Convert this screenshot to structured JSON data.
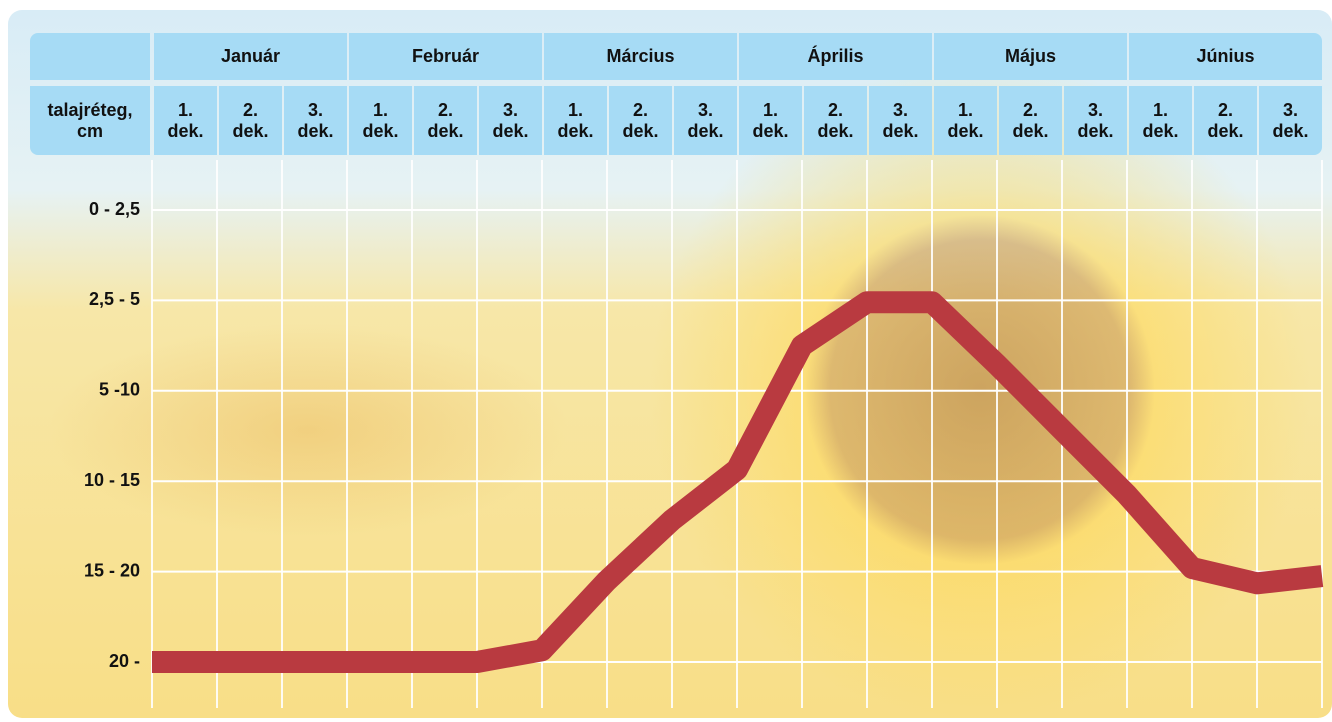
{
  "chart_data": {
    "type": "line",
    "y_axis_title": "talajréteg, cm",
    "months": [
      {
        "name": "Január",
        "dekads": [
          "1. dek.",
          "2. dek.",
          "3. dek."
        ]
      },
      {
        "name": "Február",
        "dekads": [
          "1. dek.",
          "2. dek.",
          "3. dek."
        ]
      },
      {
        "name": "Március",
        "dekads": [
          "1. dek.",
          "2. dek.",
          "3. dek."
        ]
      },
      {
        "name": "Április",
        "dekads": [
          "1. dek.",
          "2. dek.",
          "3. dek."
        ]
      },
      {
        "name": "Május",
        "dekads": [
          "1. dek.",
          "2. dek.",
          "3. dek."
        ]
      },
      {
        "name": "Június",
        "dekads": [
          "1. dek.",
          "2. dek.",
          "3. dek."
        ]
      }
    ],
    "x": [
      0,
      1,
      2,
      3,
      4,
      5,
      6,
      7,
      8,
      9,
      10,
      11,
      12,
      13,
      14,
      15,
      16,
      17,
      18
    ],
    "xlim": [
      0,
      18
    ],
    "ylim": [
      -0.3,
      5.5
    ],
    "yticks": [
      {
        "value": 0,
        "label": "0 - 2,5"
      },
      {
        "value": 1,
        "label": "2,5 - 5"
      },
      {
        "value": 2,
        "label": "5 -10"
      },
      {
        "value": 3,
        "label": "10 - 15"
      },
      {
        "value": 4,
        "label": "15 - 20"
      },
      {
        "value": 5,
        "label": "20 -"
      }
    ],
    "series": [
      {
        "color": "#b93a40",
        "values": [
          5,
          5,
          5,
          5,
          5,
          5,
          4.87,
          4.1,
          3.43,
          2.87,
          1.5,
          1.02,
          1.02,
          1.71,
          2.43,
          3.15,
          3.96,
          4.13,
          4.05
        ]
      }
    ],
    "grid": true
  }
}
